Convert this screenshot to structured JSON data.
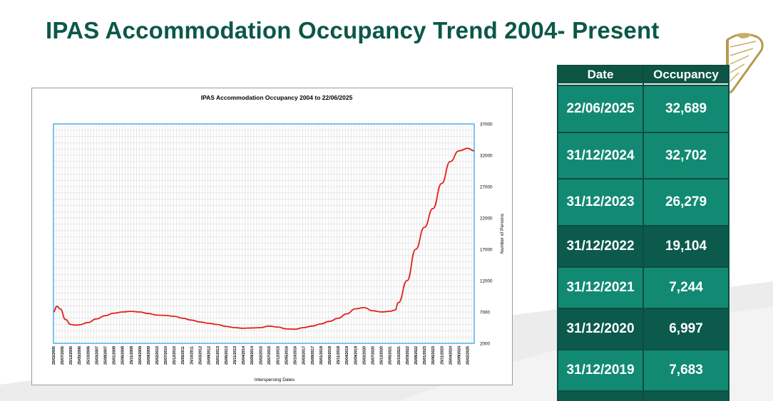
{
  "slide": {
    "title": "IPAS Accommodation Occupancy Trend 2004- Present"
  },
  "table": {
    "headers": [
      "Date",
      "Occupancy"
    ],
    "rows": [
      {
        "date": "22/06/2025",
        "occupancy": "32,689"
      },
      {
        "date": "31/12/2024",
        "occupancy": "32,702"
      },
      {
        "date": "31/12/2023",
        "occupancy": "26,279"
      },
      {
        "date": "31/12/2022",
        "occupancy": "19,104"
      },
      {
        "date": "31/12/2021",
        "occupancy": "7,244"
      },
      {
        "date": "31/12/2020",
        "occupancy": "6,997"
      },
      {
        "date": "31/12/2019",
        "occupancy": "7,683"
      }
    ]
  },
  "chart_data": {
    "type": "line",
    "title": "IPAS Accommodation Occupancy 2004 to 22/06/2025",
    "xlabel": "Interspersing Dates",
    "ylabel": "Number of Persons",
    "ylim": [
      2000,
      37000
    ],
    "yticks": [
      2000,
      7000,
      12000,
      17000,
      22000,
      27000,
      32000,
      37000
    ],
    "xticks": [
      "25/02/2005",
      "25/07/2005",
      "25/12/2005",
      "25/05/2006",
      "25/10/2006",
      "25/03/2007",
      "25/08/2007",
      "25/01/2008",
      "25/06/2008",
      "25/11/2008",
      "25/04/2009",
      "25/09/2009",
      "25/02/2010",
      "25/07/2010",
      "25/12/2010",
      "25/05/2011",
      "25/10/2011",
      "25/03/2012",
      "25/08/2012",
      "25/01/2013",
      "25/06/2013",
      "25/11/2013",
      "25/04/2014",
      "25/09/2014",
      "25/02/2015",
      "25/07/2015",
      "25/12/2015",
      "25/05/2016",
      "25/10/2016",
      "25/03/2017",
      "25/08/2017",
      "25/01/2018",
      "25/06/2018",
      "25/11/2018",
      "25/04/2019",
      "25/09/2019",
      "25/02/2020",
      "25/07/2020",
      "25/12/2020",
      "25/05/2021",
      "25/10/2021",
      "25/03/2022",
      "25/08/2022",
      "25/01/2023",
      "25/06/2023",
      "25/11/2023",
      "25/04/2024",
      "25/09/2024",
      "25/02/2025"
    ],
    "grid": true,
    "series": [
      {
        "color": "#e0201c",
        "points": [
          [
            "25/02/2005",
            7000
          ],
          [
            "25/04/2005",
            7900
          ],
          [
            "25/06/2005",
            7500
          ],
          [
            "25/09/2005",
            5800
          ],
          [
            "25/12/2005",
            5000
          ],
          [
            "25/03/2006",
            4900
          ],
          [
            "25/05/2006",
            4950
          ],
          [
            "25/10/2006",
            5300
          ],
          [
            "25/03/2007",
            5900
          ],
          [
            "25/08/2007",
            6400
          ],
          [
            "25/01/2008",
            6800
          ],
          [
            "25/06/2008",
            7000
          ],
          [
            "25/11/2008",
            7100
          ],
          [
            "25/04/2009",
            7000
          ],
          [
            "25/09/2009",
            6750
          ],
          [
            "25/02/2010",
            6500
          ],
          [
            "25/07/2010",
            6450
          ],
          [
            "25/12/2010",
            6300
          ],
          [
            "25/05/2011",
            6000
          ],
          [
            "25/10/2011",
            5700
          ],
          [
            "25/03/2012",
            5400
          ],
          [
            "25/08/2012",
            5200
          ],
          [
            "25/01/2013",
            5000
          ],
          [
            "25/06/2013",
            4700
          ],
          [
            "25/11/2013",
            4500
          ],
          [
            "25/04/2014",
            4400
          ],
          [
            "25/09/2014",
            4450
          ],
          [
            "25/02/2015",
            4500
          ],
          [
            "25/07/2015",
            4750
          ],
          [
            "25/12/2015",
            4600
          ],
          [
            "25/05/2016",
            4300
          ],
          [
            "25/10/2016",
            4250
          ],
          [
            "25/03/2017",
            4500
          ],
          [
            "25/08/2017",
            4750
          ],
          [
            "25/01/2018",
            5100
          ],
          [
            "25/06/2018",
            5500
          ],
          [
            "25/11/2018",
            6000
          ],
          [
            "25/04/2019",
            6700
          ],
          [
            "25/09/2019",
            7500
          ],
          [
            "25/02/2020",
            7700
          ],
          [
            "25/07/2020",
            7200
          ],
          [
            "25/12/2020",
            7000
          ],
          [
            "25/05/2021",
            7100
          ],
          [
            "25/08/2021",
            7300
          ],
          [
            "25/10/2021",
            8500
          ],
          [
            "25/03/2022",
            12000
          ],
          [
            "25/08/2022",
            17000
          ],
          [
            "25/01/2023",
            20500
          ],
          [
            "25/06/2023",
            23500
          ],
          [
            "25/11/2023",
            27500
          ],
          [
            "25/04/2024",
            31000
          ],
          [
            "25/09/2024",
            32700
          ],
          [
            "25/02/2025",
            33100
          ],
          [
            "22/06/2025",
            32700
          ]
        ]
      }
    ]
  }
}
